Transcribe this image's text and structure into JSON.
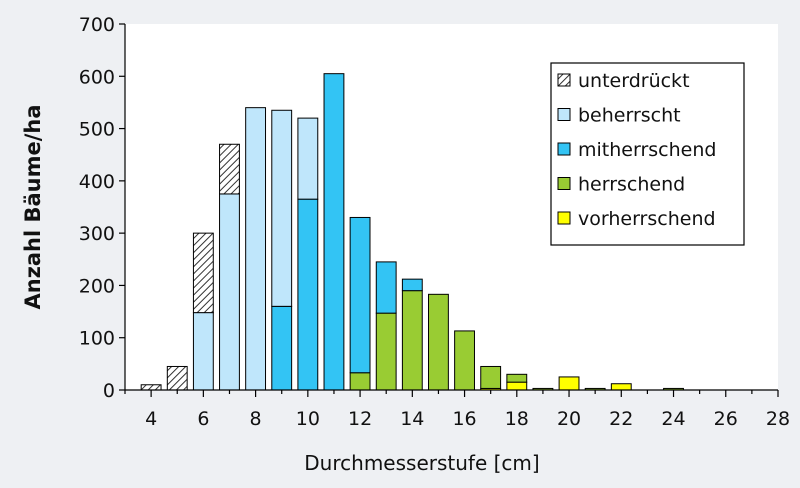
{
  "chart_data": {
    "type": "bar",
    "stacked": true,
    "title": "",
    "xlabel": "Durchmesserstufe [cm]",
    "ylabel": "Anzahl Bäume/ha",
    "ylim": [
      0,
      700
    ],
    "yticks": [
      "0",
      "100",
      "200",
      "300",
      "400",
      "500",
      "600",
      "700"
    ],
    "xlim": [
      3,
      28
    ],
    "xticks": [
      "4",
      "6",
      "8",
      "10",
      "12",
      "14",
      "16",
      "18",
      "20",
      "22",
      "24",
      "26",
      "28"
    ],
    "categories": [
      4,
      5,
      6,
      7,
      8,
      9,
      10,
      11,
      12,
      13,
      14,
      15,
      16,
      17,
      18,
      19,
      20,
      21,
      22,
      23,
      24
    ],
    "grid": false,
    "legend_position": "top-right",
    "series": [
      {
        "name": "vorherrschend",
        "color": "#ffff00",
        "pattern": "solid",
        "values": [
          0,
          0,
          0,
          0,
          0,
          0,
          0,
          0,
          0,
          0,
          0,
          0,
          0,
          3,
          15,
          0,
          25,
          0,
          12,
          0,
          0
        ]
      },
      {
        "name": "herrschend",
        "color": "#99cc33",
        "pattern": "solid",
        "values": [
          0,
          0,
          0,
          0,
          0,
          0,
          0,
          0,
          33,
          147,
          190,
          183,
          113,
          42,
          15,
          3,
          0,
          3,
          0,
          0,
          3
        ]
      },
      {
        "name": "mitherrschend",
        "color": "#33c4f4",
        "pattern": "solid",
        "values": [
          0,
          0,
          0,
          0,
          0,
          160,
          365,
          605,
          297,
          98,
          22,
          0,
          0,
          0,
          0,
          0,
          0,
          0,
          0,
          0,
          0
        ]
      },
      {
        "name": "beherrscht",
        "color": "#bfe6fb",
        "pattern": "solid",
        "values": [
          0,
          0,
          148,
          375,
          540,
          375,
          155,
          0,
          0,
          0,
          0,
          0,
          0,
          0,
          0,
          0,
          0,
          0,
          0,
          0,
          0
        ]
      },
      {
        "name": "unterdrückt",
        "color": "#ffffff",
        "pattern": "hatch",
        "values": [
          10,
          45,
          152,
          95,
          0,
          0,
          0,
          0,
          0,
          0,
          0,
          0,
          0,
          0,
          0,
          0,
          0,
          0,
          0,
          0,
          0
        ]
      }
    ],
    "legend_order": [
      "unterdrückt",
      "beherrscht",
      "mitherrschend",
      "herrschend",
      "vorherrschend"
    ]
  }
}
